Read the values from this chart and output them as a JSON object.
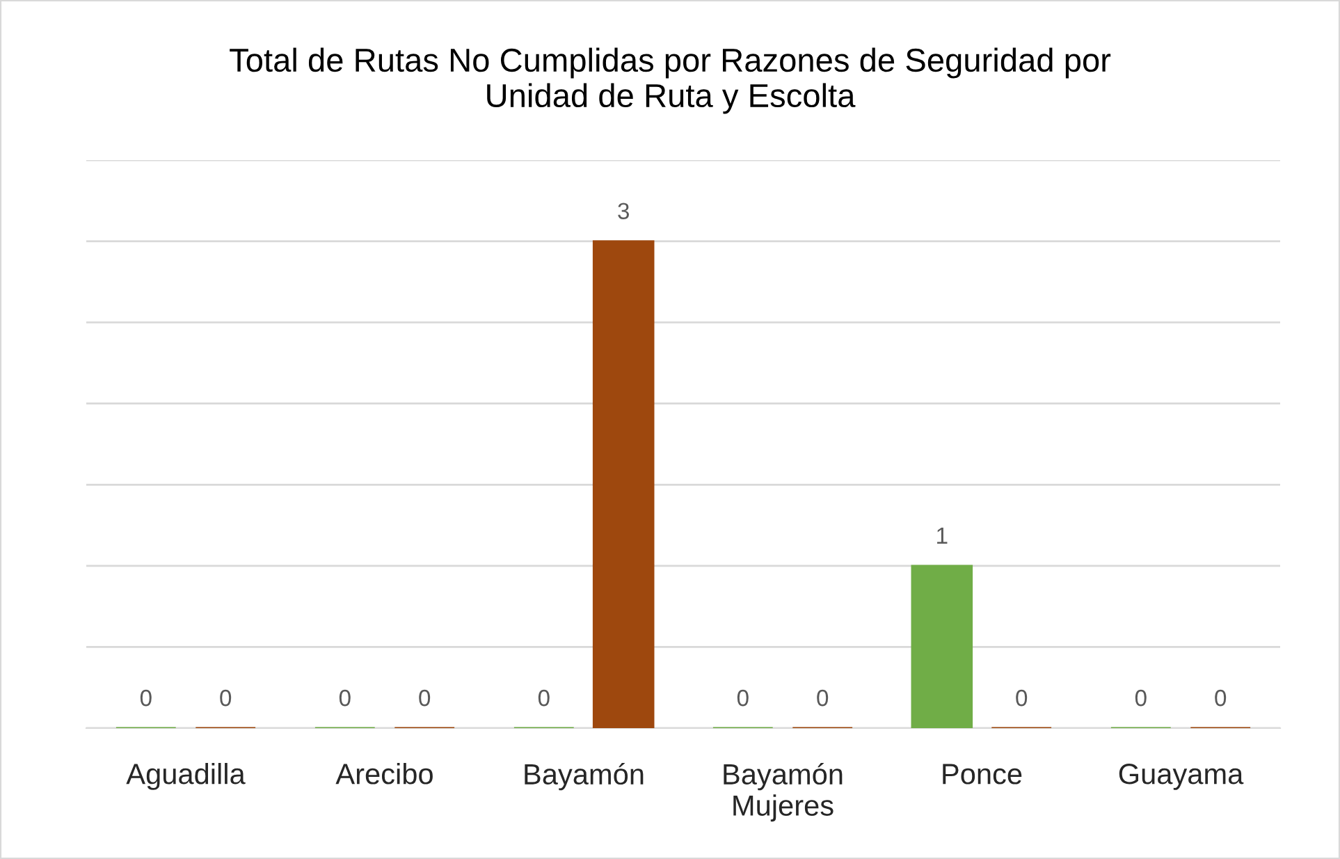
{
  "chart_data": {
    "type": "bar",
    "title": "Total de Rutas No Cumplidas por Razones de Seguridad por Unidad de Ruta y Escolta",
    "categories": [
      "Aguadilla",
      "Arecibo",
      "Bayamón",
      "Bayamón\nMujeres",
      "Ponce",
      "Guayama"
    ],
    "series": [
      {
        "color": "#70ad47",
        "values": [
          0,
          0,
          0,
          0,
          1,
          0
        ]
      },
      {
        "color": "#9e480e",
        "values": [
          0,
          0,
          3,
          0,
          0,
          0
        ]
      }
    ],
    "ylim": [
      0,
      3.5
    ],
    "yticks": [
      {
        "value": 0,
        "label": null
      },
      {
        "value": 0.5,
        "label": null
      },
      {
        "value": 1,
        "label": null
      },
      {
        "value": 1.5,
        "label": null
      },
      {
        "value": 2,
        "label": null
      },
      {
        "value": 2.5,
        "label": null
      },
      {
        "value": 3,
        "label": null
      },
      {
        "value": 3.5,
        "label": null
      }
    ],
    "grid": "y",
    "data_labels": true,
    "tick_labels": "x"
  }
}
